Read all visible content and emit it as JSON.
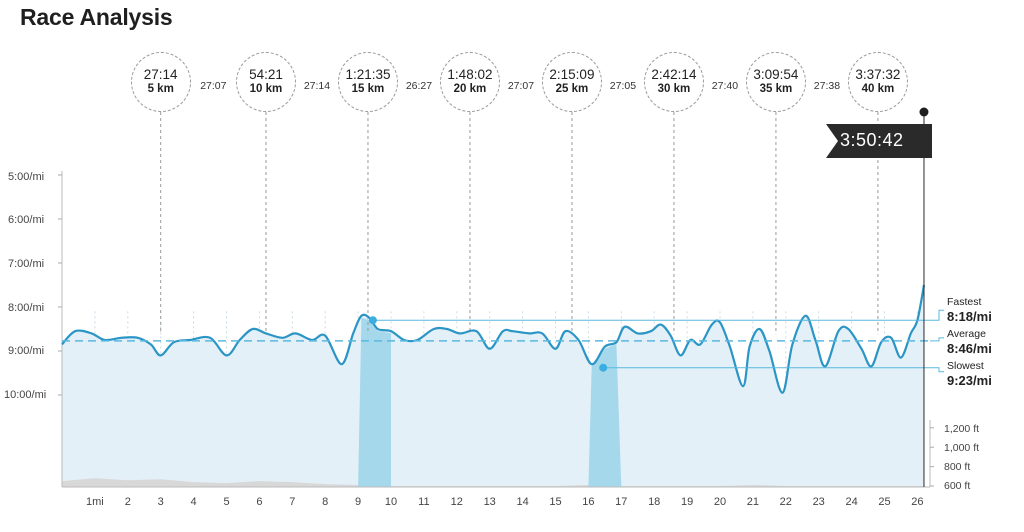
{
  "page": {
    "title": "Race Analysis"
  },
  "splits": [
    {
      "time": "27:14",
      "distance": "5 km",
      "mile": 3.0
    },
    {
      "time": "54:21",
      "distance": "10 km",
      "mile": 6.2
    },
    {
      "time": "1:21:35",
      "distance": "15 km",
      "mile": 9.3
    },
    {
      "time": "1:48:02",
      "distance": "20 km",
      "mile": 12.4
    },
    {
      "time": "2:15:09",
      "distance": "25 km",
      "mile": 15.5
    },
    {
      "time": "2:42:14",
      "distance": "30 km",
      "mile": 18.6
    },
    {
      "time": "3:09:54",
      "distance": "35 km",
      "mile": 21.7
    },
    {
      "time": "3:37:32",
      "distance": "40 km",
      "mile": 24.8
    }
  ],
  "segment_times": [
    "27:07",
    "27:14",
    "26:27",
    "27:07",
    "27:05",
    "27:40",
    "27:38"
  ],
  "finish": {
    "time": "3:50:42",
    "mile": 26.2
  },
  "stats": {
    "fastest_label": "Fastest",
    "fastest_value": "8:18/mi",
    "fastest_pace": 8.3,
    "average_label": "Average",
    "average_value": "8:46/mi",
    "average_pace": 8.77,
    "slowest_label": "Slowest",
    "slowest_value": "9:23/mi",
    "slowest_pace": 9.38
  },
  "highlights": [
    {
      "name": "fastest-mile",
      "from_mile": 9.0,
      "to_mile": 10.0,
      "marker_mile": 9.45
    },
    {
      "name": "slowest-mile",
      "from_mile": 16.0,
      "to_mile": 17.0,
      "marker_mile": 16.45
    }
  ],
  "colors": {
    "line": "#2b95c6",
    "fill": "#e3f0f7",
    "highlight": "#a6d8ec",
    "marker": "#3aaee0",
    "finish_flag": "#2a2a2a",
    "elevation": "#d8d8d8"
  },
  "chart_data": {
    "type": "line",
    "x_unit": "mi",
    "y_unit": "min/mi",
    "y_axis": {
      "labels": [
        "5:00/mi",
        "6:00/mi",
        "7:00/mi",
        "8:00/mi",
        "9:00/mi",
        "10:00/mi"
      ],
      "values": [
        5,
        6,
        7,
        8,
        9,
        10
      ],
      "inverted": true
    },
    "x_axis": {
      "labels": [
        "1mi",
        "2",
        "3",
        "4",
        "5",
        "6",
        "7",
        "8",
        "9",
        "10",
        "11",
        "12",
        "13",
        "14",
        "15",
        "16",
        "17",
        "18",
        "19",
        "20",
        "21",
        "22",
        "23",
        "24",
        "25",
        "26"
      ],
      "range": [
        0,
        26.2
      ]
    },
    "elevation_axis": {
      "labels": [
        "1,200 ft",
        "1,000 ft",
        "800 ft",
        "600 ft"
      ],
      "values": [
        1200,
        1000,
        800,
        600
      ]
    },
    "pace_series": {
      "name": "",
      "x": [
        0,
        0.4,
        0.9,
        1.3,
        1.8,
        2.3,
        2.7,
        3.0,
        3.4,
        3.9,
        4.5,
        5.0,
        5.4,
        5.8,
        6.2,
        6.7,
        7.1,
        7.6,
        8.0,
        8.5,
        8.85,
        9.1,
        9.35,
        9.6,
        10.0,
        10.4,
        10.8,
        11.3,
        11.7,
        12.1,
        12.6,
        13.0,
        13.4,
        13.7,
        14.2,
        14.6,
        15.0,
        15.3,
        15.7,
        16.1,
        16.5,
        16.85,
        17.1,
        17.5,
        17.9,
        18.2,
        18.5,
        18.8,
        19.1,
        19.4,
        19.75,
        20.0,
        20.3,
        20.7,
        20.9,
        21.2,
        21.5,
        21.9,
        22.2,
        22.6,
        22.9,
        23.2,
        23.6,
        23.9,
        24.3,
        24.6,
        24.9,
        25.2,
        25.5,
        25.8,
        26.0,
        26.2
      ],
      "y": [
        8.85,
        8.55,
        8.6,
        8.75,
        8.7,
        8.7,
        8.85,
        9.1,
        8.8,
        8.75,
        8.7,
        9.1,
        8.75,
        8.5,
        8.6,
        8.7,
        8.6,
        8.75,
        8.65,
        9.3,
        8.6,
        8.2,
        8.25,
        8.5,
        8.55,
        8.75,
        8.75,
        8.5,
        8.5,
        8.6,
        8.55,
        8.95,
        8.55,
        8.55,
        8.6,
        8.6,
        8.95,
        8.55,
        8.75,
        9.3,
        8.9,
        8.8,
        8.45,
        8.6,
        8.55,
        8.4,
        8.65,
        9.1,
        8.75,
        8.85,
        8.4,
        8.35,
        8.9,
        9.8,
        8.9,
        8.5,
        9.0,
        9.95,
        8.85,
        8.2,
        8.75,
        9.35,
        8.55,
        8.5,
        8.95,
        9.35,
        8.8,
        8.7,
        9.15,
        8.6,
        8.3,
        7.5
      ]
    },
    "elevation_series": {
      "name": "",
      "x": [
        0,
        1,
        2,
        3,
        4,
        5,
        6,
        7,
        8,
        9,
        10,
        11,
        12,
        13,
        14,
        15,
        16,
        17,
        18,
        19,
        20,
        21,
        22,
        23,
        24,
        25,
        26.2
      ],
      "y": [
        650,
        680,
        660,
        670,
        640,
        630,
        650,
        640,
        620,
        610,
        600,
        600,
        600,
        600,
        600,
        600,
        610,
        600,
        600,
        600,
        600,
        610,
        600,
        600,
        600,
        600,
        600
      ]
    }
  }
}
